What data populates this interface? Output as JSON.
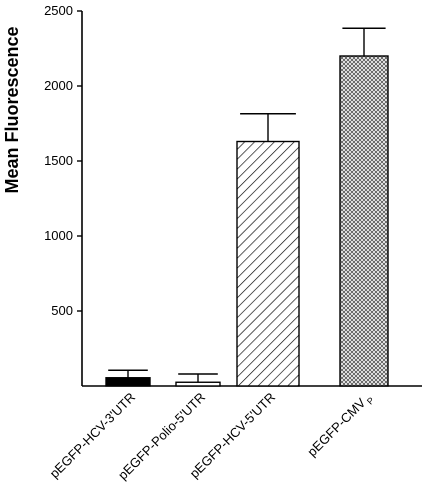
{
  "chart_data": {
    "type": "bar",
    "title": "",
    "xlabel": "",
    "ylabel": "Mean Fluorescence",
    "ylim": [
      0,
      2500
    ],
    "yticks": [
      500,
      1000,
      1500,
      2000,
      2500
    ],
    "grid": false,
    "categories": [
      {
        "label": "pEGFP-HCV-3'UTR",
        "sub": ""
      },
      {
        "label": "pEGFP-Polio-5'UTR",
        "sub": ""
      },
      {
        "label": "pEGFP-HCV-5'UTR",
        "sub": ""
      },
      {
        "label": "pEGFP-CMV",
        "sub": "P"
      }
    ],
    "values": [
      55,
      25,
      1630,
      2200
    ],
    "errors": [
      50,
      55,
      185,
      185
    ],
    "fills": [
      "solid-black",
      "white",
      "diagonal-hatch",
      "crosshatch"
    ]
  }
}
